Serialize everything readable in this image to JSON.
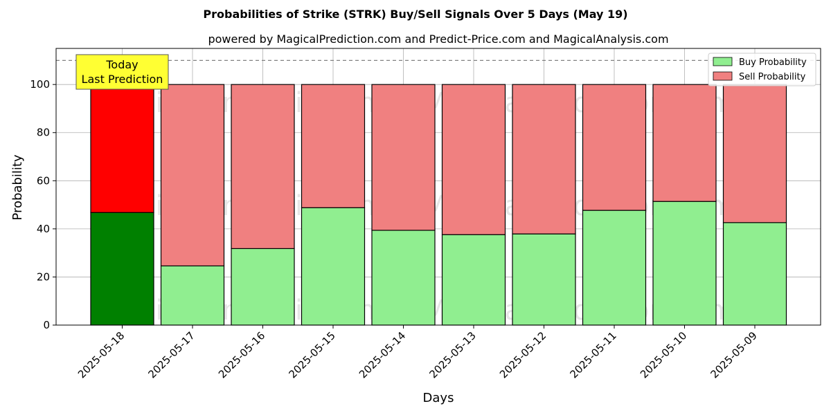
{
  "chart_data": {
    "type": "bar",
    "stacked": true,
    "title": "Probabilities of Strike (STRK) Buy/Sell Signals Over 5 Days (May 19)",
    "subtitle": "powered by MagicalPrediction.com and Predict-Price.com and MagicalAnalysis.com",
    "xlabel": "Days",
    "ylabel": "Probability",
    "ylim": [
      0,
      115
    ],
    "yticks": [
      0,
      20,
      40,
      60,
      80,
      100
    ],
    "grid": true,
    "legend_position": "top-right",
    "reference_line": 110,
    "categories": [
      "2025-05-18",
      "2025-05-17",
      "2025-05-16",
      "2025-05-15",
      "2025-05-14",
      "2025-05-13",
      "2025-05-12",
      "2025-05-11",
      "2025-05-10",
      "2025-05-09"
    ],
    "series": [
      {
        "name": "Buy Probability",
        "values": [
          46.8,
          24.6,
          31.8,
          48.8,
          39.4,
          37.6,
          37.9,
          47.7,
          51.4,
          42.6
        ],
        "color": "#90ee90",
        "highlight_color": "#008000"
      },
      {
        "name": "Sell Probability",
        "values": [
          53.2,
          75.4,
          68.2,
          51.2,
          60.6,
          62.4,
          62.1,
          52.3,
          48.6,
          57.4
        ],
        "color": "#f08080",
        "highlight_color": "#ff0000"
      }
    ],
    "annotation": {
      "lines": [
        "Today",
        "Last Prediction"
      ],
      "background": "#ffff33"
    },
    "watermarks": [
      "MagicalAnalysis.com",
      "MagicalPrediction.com"
    ]
  }
}
